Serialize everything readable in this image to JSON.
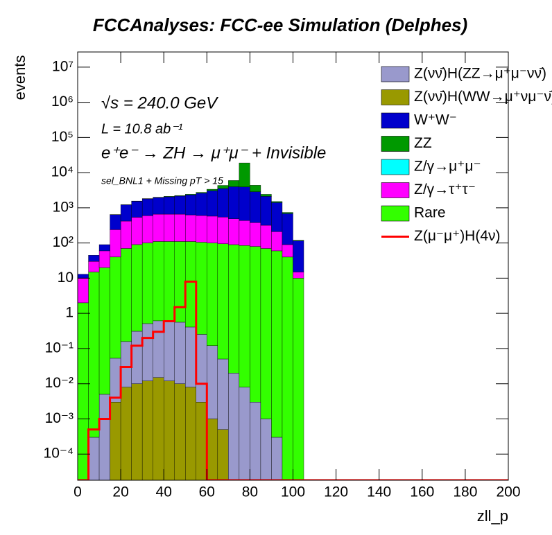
{
  "chart_data": {
    "type": "stacked_histogram",
    "title": "FCCAnalyses: FCC-ee Simulation (Delphes)",
    "x_label": "zll_p",
    "y_label": "events",
    "annotations": [
      "√s = 240.0 GeV",
      "L = 10.8 ab⁻¹",
      "e⁺e⁻ → ZH → μ⁺μ⁻ + Invisible",
      "sel_BNL1 + Missing pT > 15"
    ],
    "log_y": true,
    "bins": [
      0,
      5,
      10,
      15,
      20,
      25,
      30,
      35,
      40,
      45,
      50,
      55,
      60,
      65,
      70,
      75,
      80,
      85,
      90,
      95,
      100,
      105
    ],
    "xlim": [
      0,
      200
    ],
    "xticks": [
      0,
      20,
      40,
      60,
      80,
      100,
      120,
      140,
      160,
      180,
      200
    ],
    "ylim": [
      1.8e-05,
      27000000.0
    ],
    "yticks": [
      {
        "value": 0.0001,
        "label": "10⁻⁴"
      },
      {
        "value": 0.001,
        "label": "10⁻³"
      },
      {
        "value": 0.01,
        "label": "10⁻²"
      },
      {
        "value": 0.1,
        "label": "10⁻¹"
      },
      1,
      10,
      {
        "value": 100,
        "label": "10²"
      },
      {
        "value": 1000,
        "label": "10³"
      },
      {
        "value": 10000,
        "label": "10⁴"
      },
      {
        "value": 100000,
        "label": "10⁵"
      },
      {
        "value": 1000000,
        "label": "10⁶"
      },
      {
        "value": 10000000,
        "label": "10⁷"
      }
    ],
    "series": [
      {
        "name": "Z(νν̄)H(ZZ→μ⁺μ⁻νν̄)",
        "color": "#9999cc",
        "values": [
          0,
          0.0003,
          0.005,
          0.05,
          0.15,
          0.3,
          0.5,
          0.6,
          0.6,
          0.55,
          0.4,
          0.25,
          0.12,
          0.05,
          0.02,
          0.008,
          0.003,
          0.001,
          0.0003,
          0,
          0
        ]
      },
      {
        "name": "Z(νν̄)H(WW→μ⁺νμ⁻ν̄)",
        "color": "#999900",
        "values": [
          0,
          0,
          0,
          0.003,
          0.008,
          0.01,
          0.012,
          0.015,
          0.012,
          0.01,
          0.008,
          0.003,
          0.001,
          0.0005,
          0,
          0,
          0,
          0,
          0,
          0,
          0
        ]
      },
      {
        "name": "W⁺W⁻",
        "color": "#0000cc",
        "values": [
          3,
          15,
          30,
          400,
          800,
          1000,
          1200,
          1300,
          1400,
          1500,
          1700,
          2000,
          2500,
          3000,
          3500,
          3500,
          2500,
          1800,
          1200,
          600,
          100
        ]
      },
      {
        "name": "ZZ",
        "color": "#009900",
        "values": [
          0,
          0,
          0,
          5,
          10,
          20,
          30,
          40,
          60,
          80,
          100,
          150,
          300,
          800,
          2000,
          15000,
          1500,
          300,
          100,
          50,
          5
        ]
      },
      {
        "name": "Z/γ→μ⁺μ⁻",
        "color": "#00ffff",
        "values": [
          0,
          0,
          0,
          0,
          0,
          0,
          0,
          0,
          0,
          0,
          0,
          0,
          0,
          0,
          0,
          0,
          0,
          0,
          0,
          0,
          0
        ]
      },
      {
        "name": "Z/γ→τ⁺τ⁻",
        "color": "#ff00ff",
        "values": [
          8,
          15,
          40,
          200,
          350,
          450,
          500,
          550,
          550,
          550,
          520,
          500,
          480,
          450,
          400,
          350,
          300,
          250,
          150,
          50,
          5
        ]
      },
      {
        "name": "Rare",
        "color": "#33ff00",
        "values": [
          2,
          15,
          20,
          40,
          70,
          90,
          100,
          110,
          110,
          110,
          110,
          105,
          100,
          95,
          90,
          85,
          80,
          70,
          60,
          40,
          10
        ]
      },
      {
        "name": "Z(μ⁻μ⁺)H(4ν)",
        "color": "#ff0000",
        "style": "line",
        "values": [
          0,
          0.0005,
          0.001,
          0.004,
          0.03,
          0.12,
          0.2,
          0.3,
          0.6,
          1.5,
          8,
          0.01,
          0,
          0,
          0,
          0,
          0,
          0,
          0,
          0,
          0
        ]
      }
    ]
  }
}
